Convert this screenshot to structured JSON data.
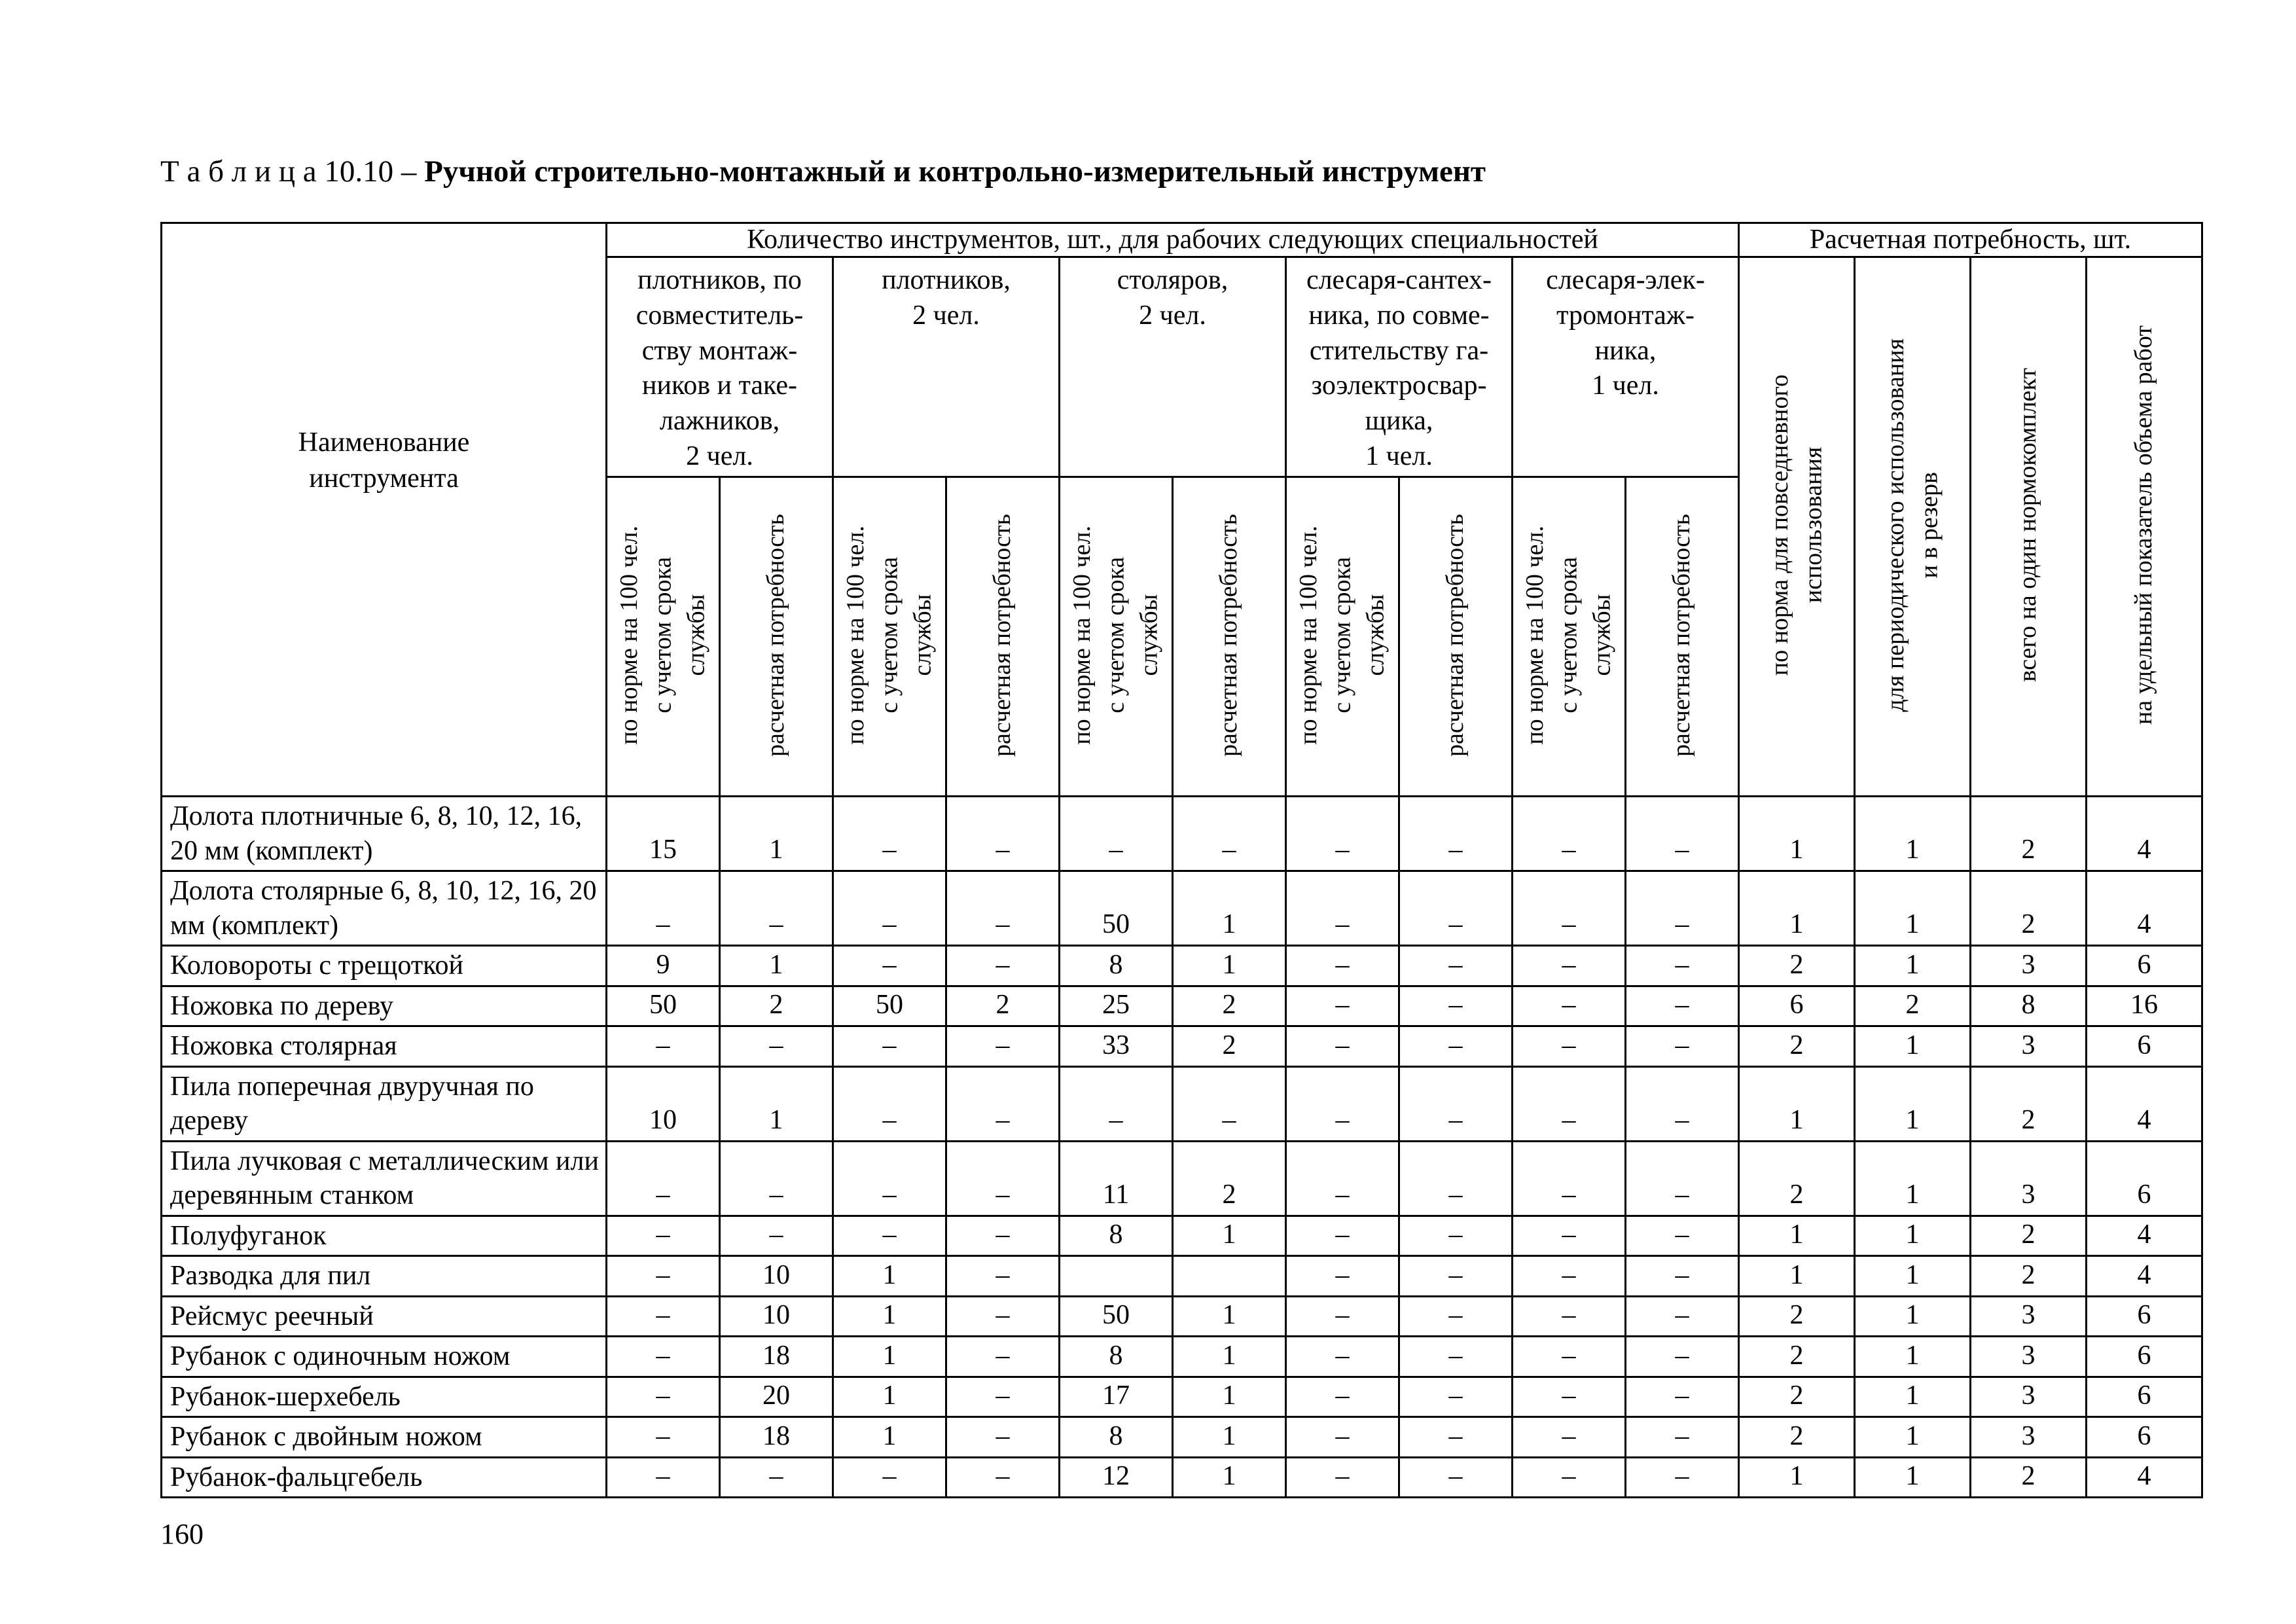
{
  "page": {
    "title_prefix": "Т а б л и ц а  10.10",
    "title_dash": "–",
    "title_main": "Ручной строительно-монтажный и контрольно-измерительный инструмент",
    "page_number": "160"
  },
  "table": {
    "name_header": "Наименование\nинструмента",
    "quantity_group": "Количество инструментов, шт., для рабочих следующих специальностей",
    "need_group": "Расчетная потребность, шт.",
    "specialties": [
      "плотников, по\nсовместитель-\nству монтаж-\nников и таке-\nлажников,\n2 чел.",
      "плотников,\n2 чел.",
      "столяров,\n2 чел.",
      "слесаря-сантех-\nника, по совме-\nстительству га-\nзоэлектросвар-\nщика,\n1 чел.",
      "слесаря-элек-\nтромонтаж-\nника,\n1 чел."
    ],
    "sub_headers": {
      "norm": "по норме на 100 чел.\nс учетом срока\nслужбы",
      "calc": "расчетная потребность"
    },
    "need_columns": [
      "по норма для повседневного\nиспользования",
      "для периодического использования\nи в резерв",
      "всего на один нормокомплект",
      "на удельный показатель объема работ"
    ],
    "rows": [
      {
        "name": "Долота плотничные 6, 8, 10, 12, 16, 20 мм (комплект)",
        "values": [
          "15",
          "1",
          "–",
          "–",
          "–",
          "–",
          "–",
          "–",
          "–",
          "–",
          "1",
          "1",
          "2",
          "4"
        ]
      },
      {
        "name": "Долота столярные 6, 8, 10, 12, 16, 20 мм (комплект)",
        "values": [
          "–",
          "–",
          "–",
          "–",
          "50",
          "1",
          "–",
          "–",
          "–",
          "–",
          "1",
          "1",
          "2",
          "4"
        ]
      },
      {
        "name": "Коловороты с трещоткой",
        "values": [
          "9",
          "1",
          "–",
          "–",
          "8",
          "1",
          "–",
          "–",
          "–",
          "–",
          "2",
          "1",
          "3",
          "6"
        ]
      },
      {
        "name": "Ножовка по дереву",
        "values": [
          "50",
          "2",
          "50",
          "2",
          "25",
          "2",
          "–",
          "–",
          "–",
          "–",
          "6",
          "2",
          "8",
          "16"
        ]
      },
      {
        "name": "Ножовка столярная",
        "values": [
          "–",
          "–",
          "–",
          "–",
          "33",
          "2",
          "–",
          "–",
          "–",
          "–",
          "2",
          "1",
          "3",
          "6"
        ]
      },
      {
        "name": "Пила поперечная двуручная по дереву",
        "values": [
          "10",
          "1",
          "–",
          "–",
          "–",
          "–",
          "–",
          "–",
          "–",
          "–",
          "1",
          "1",
          "2",
          "4"
        ]
      },
      {
        "name": "Пила лучковая с металлическим или деревянным станком",
        "values": [
          "–",
          "–",
          "–",
          "–",
          "11",
          "2",
          "–",
          "–",
          "–",
          "–",
          "2",
          "1",
          "3",
          "6"
        ]
      },
      {
        "name": "Полуфуганок",
        "values": [
          "–",
          "–",
          "–",
          "–",
          "8",
          "1",
          "–",
          "–",
          "–",
          "–",
          "1",
          "1",
          "2",
          "4"
        ]
      },
      {
        "name": "Разводка для пил",
        "values": [
          "–",
          "10",
          "1",
          "–",
          "",
          "",
          "–",
          "–",
          "–",
          "–",
          "1",
          "1",
          "2",
          "4"
        ]
      },
      {
        "name": "Рейсмус реечный",
        "values": [
          "–",
          "10",
          "1",
          "–",
          "50",
          "1",
          "–",
          "–",
          "–",
          "–",
          "2",
          "1",
          "3",
          "6"
        ]
      },
      {
        "name": "Рубанок с одиночным ножом",
        "values": [
          "–",
          "18",
          "1",
          "–",
          "8",
          "1",
          "–",
          "–",
          "–",
          "–",
          "2",
          "1",
          "3",
          "6"
        ]
      },
      {
        "name": "Рубанок-шерхебель",
        "values": [
          "–",
          "20",
          "1",
          "–",
          "17",
          "1",
          "–",
          "–",
          "–",
          "–",
          "2",
          "1",
          "3",
          "6"
        ]
      },
      {
        "name": "Рубанок с двойным ножом",
        "values": [
          "–",
          "18",
          "1",
          "–",
          "8",
          "1",
          "–",
          "–",
          "–",
          "–",
          "2",
          "1",
          "3",
          "6"
        ]
      },
      {
        "name": "Рубанок-фальцгебель",
        "values": [
          "–",
          "–",
          "–",
          "–",
          "12",
          "1",
          "–",
          "–",
          "–",
          "–",
          "1",
          "1",
          "2",
          "4"
        ]
      }
    ]
  }
}
